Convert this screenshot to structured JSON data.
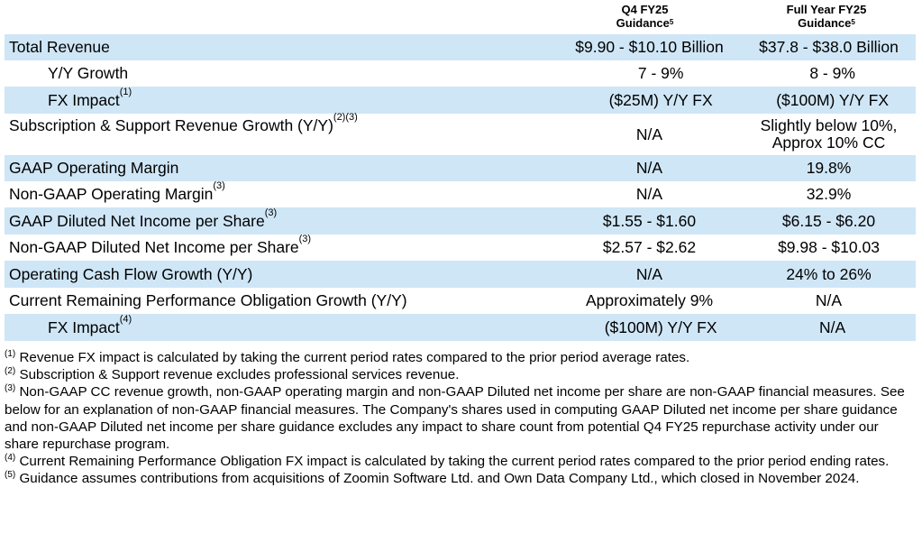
{
  "header": {
    "q4": {
      "line1": "Q4 FY25",
      "line2": "Guidance",
      "sup": "5"
    },
    "fy": {
      "line1": "Full Year FY25",
      "line2": "Guidance",
      "sup": "5"
    }
  },
  "rows": [
    {
      "label": "Total Revenue",
      "sup": "",
      "q4": "$9.90 - $10.10 Billion",
      "fy": "$37.8 - $38.0 Billion"
    },
    {
      "label": "Y/Y Growth",
      "sup": "",
      "q4": "7 - 9%",
      "fy": "8 - 9%"
    },
    {
      "label": "FX Impact",
      "sup": "(1)",
      "q4": "($25M) Y/Y FX",
      "fy": "($100M) Y/Y FX"
    },
    {
      "label": "Subscription & Support Revenue Growth (Y/Y)",
      "sup": "(2)(3)",
      "q4": "N/A",
      "fy_line1": "Slightly below 10%,",
      "fy_line2": "Approx 10% CC"
    },
    {
      "label": "GAAP Operating Margin",
      "sup": "",
      "q4": "N/A",
      "fy": "19.8%"
    },
    {
      "label": "Non-GAAP Operating Margin",
      "sup": "(3)",
      "q4": "N/A",
      "fy": "32.9%"
    },
    {
      "label": "GAAP Diluted Net Income per Share",
      "sup": "(3)",
      "q4": "$1.55 - $1.60",
      "fy": "$6.15 - $6.20"
    },
    {
      "label": "Non-GAAP Diluted Net Income per Share",
      "sup": "(3)",
      "q4": "$2.57 - $2.62",
      "fy": "$9.98 - $10.03"
    },
    {
      "label": "Operating Cash Flow Growth (Y/Y)",
      "sup": "",
      "q4": "N/A",
      "fy": "24% to 26%"
    },
    {
      "label": "Current Remaining Performance Obligation Growth (Y/Y)",
      "sup": "",
      "q4": "Approximately 9%",
      "fy": "N/A"
    },
    {
      "label": "FX Impact",
      "sup": "(4)",
      "q4": "($100M) Y/Y FX",
      "fy": "N/A"
    }
  ],
  "notes": [
    {
      "sup": "(1)",
      "text": "Revenue FX impact is calculated by taking the current period rates compared to the prior period average rates."
    },
    {
      "sup": "(2)",
      "text": "Subscription & Support revenue excludes professional services revenue."
    },
    {
      "sup": "(3)",
      "text": "Non-GAAP CC revenue growth, non-GAAP operating margin and non-GAAP Diluted net income per share are non-GAAP financial measures. See below for an explanation of non-GAAP financial measures. The Company's shares used in computing GAAP Diluted net income per share guidance and non-GAAP Diluted net income per share guidance excludes any impact to share count from potential Q4 FY25 repurchase activity under our share repurchase program."
    },
    {
      "sup": "(4)",
      "text": "Current Remaining Performance Obligation FX impact is calculated by taking the current period rates compared to the prior period ending rates."
    },
    {
      "sup": "(5)",
      "text": "Guidance assumes contributions from acquisitions of Zoomin Software Ltd. and Own Data Company Ltd., which closed in November 2024."
    }
  ]
}
